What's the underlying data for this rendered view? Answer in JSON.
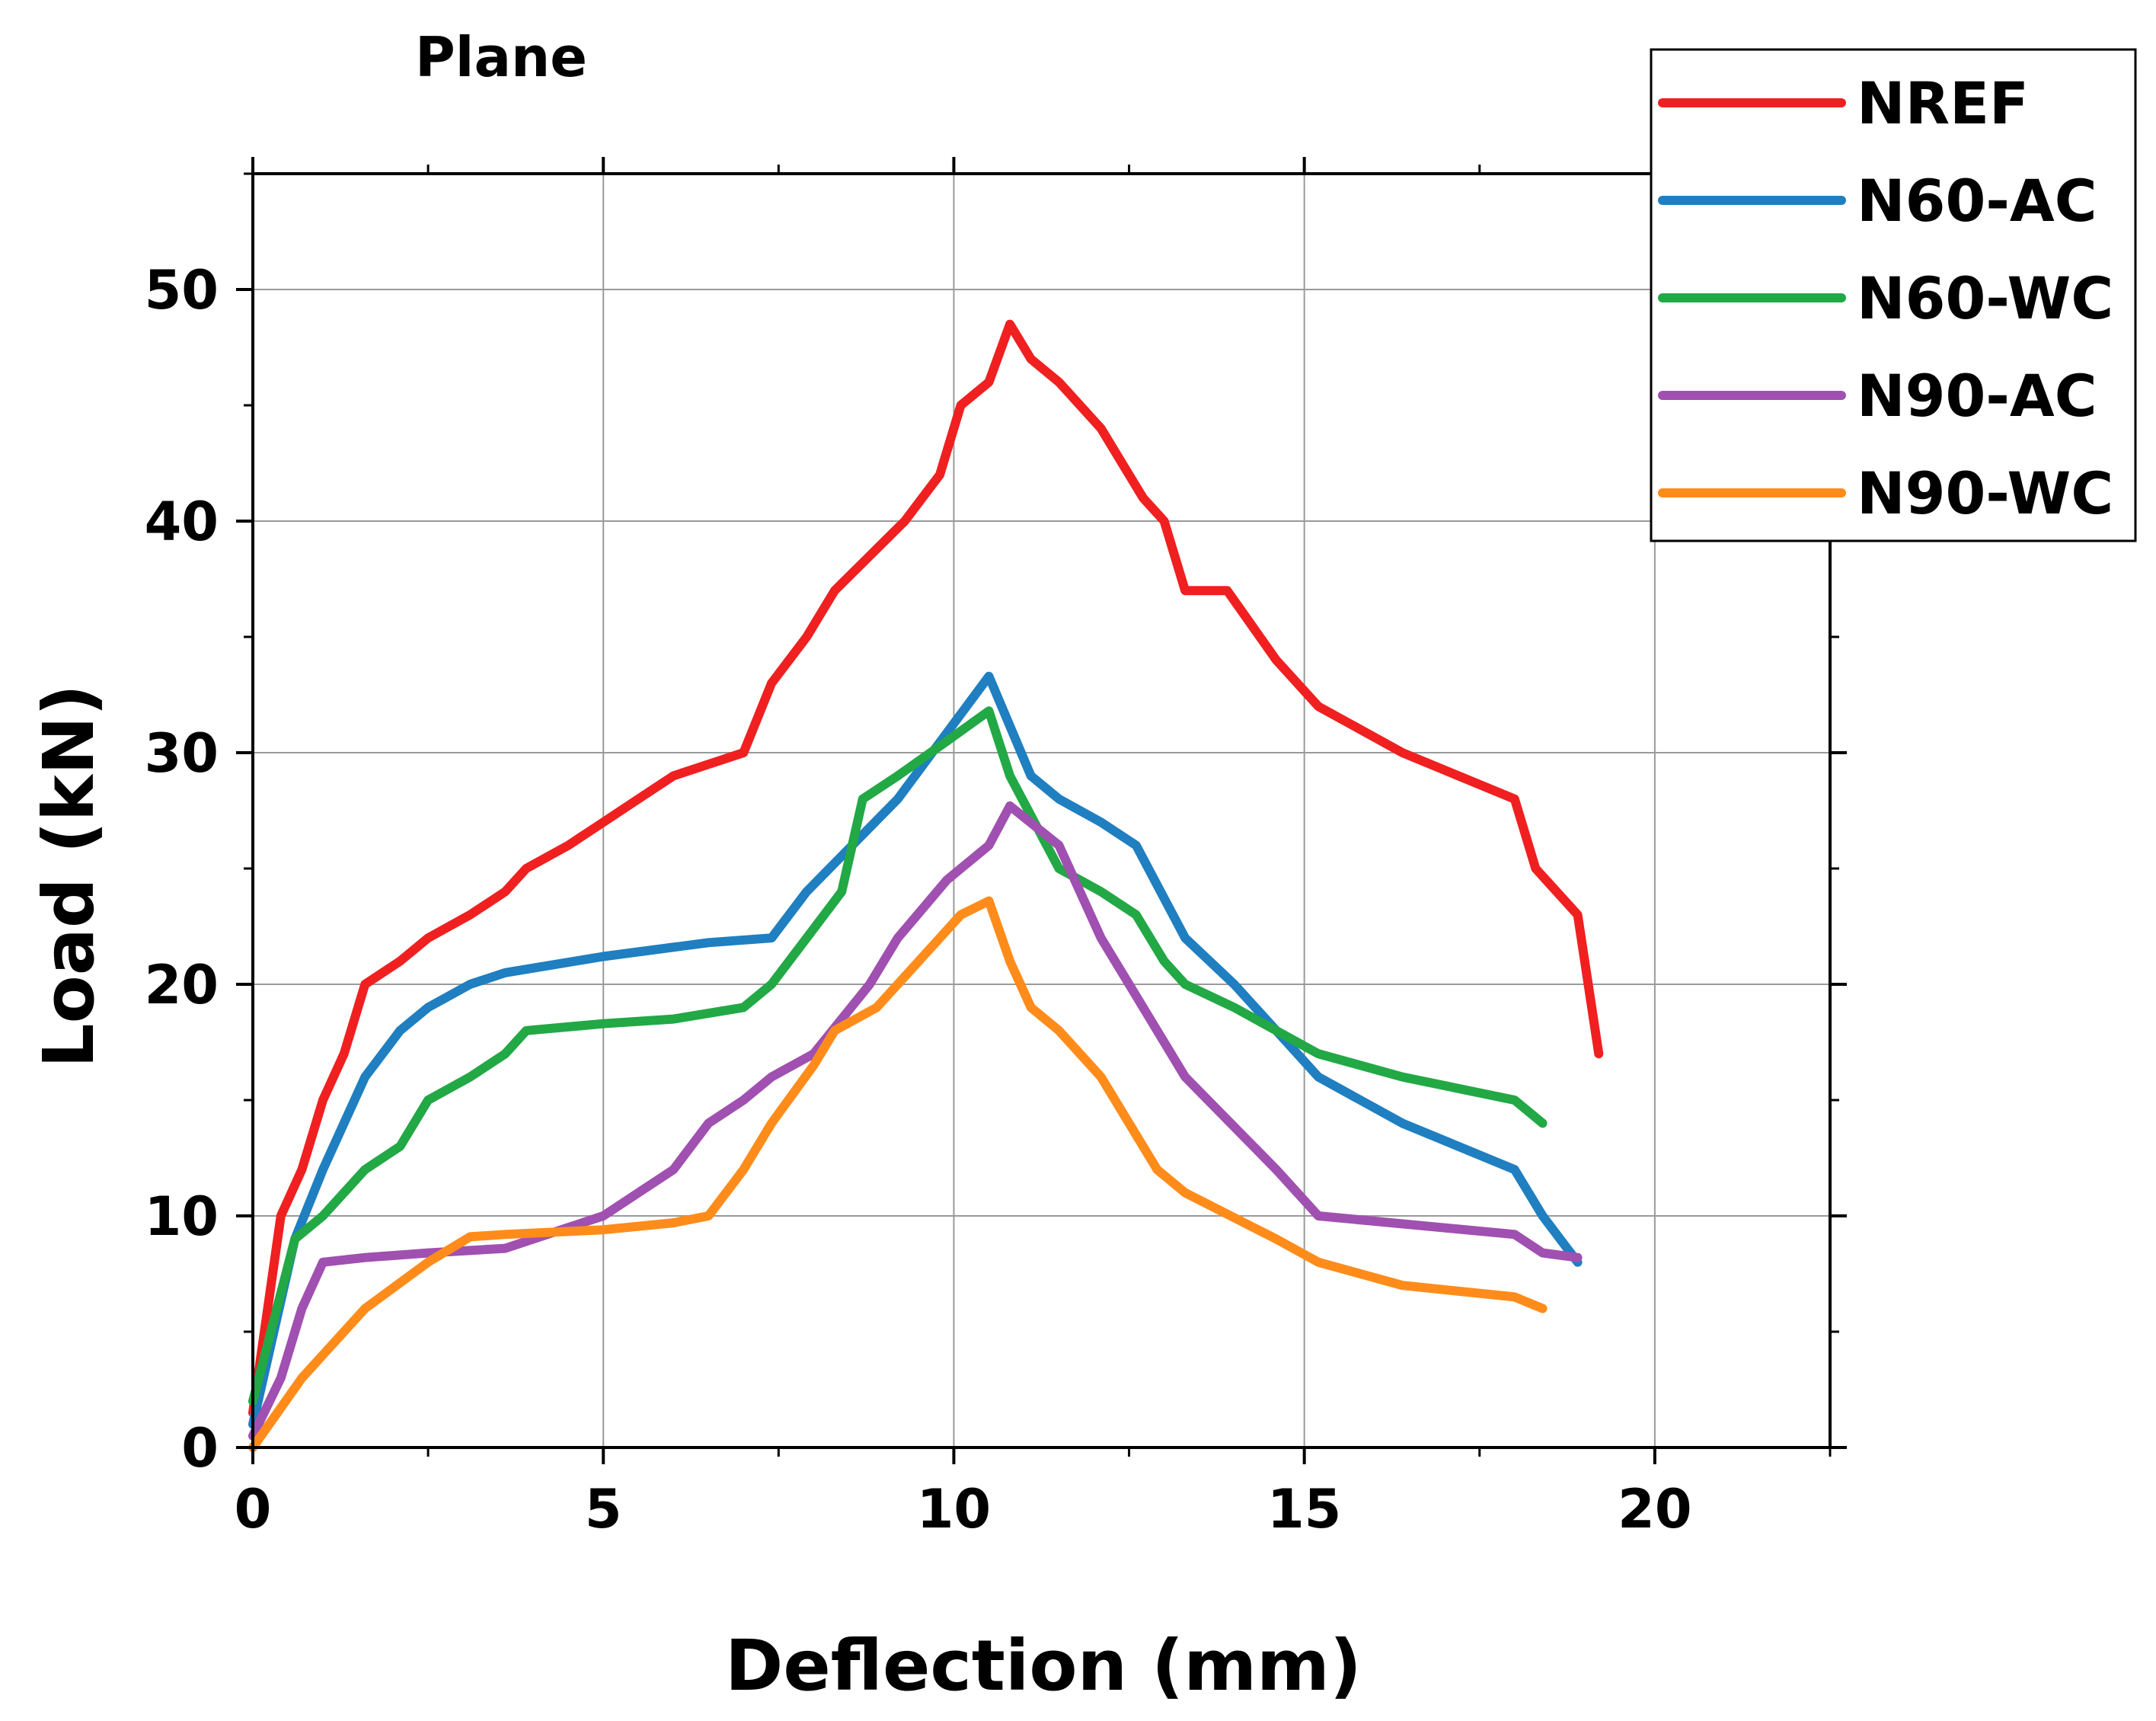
{
  "chart_data": {
    "type": "line",
    "title": "Plane",
    "xlabel": "Deflection (mm)",
    "ylabel": "Load (kN)",
    "xlim": [
      0,
      22.5
    ],
    "ylim": [
      0,
      55
    ],
    "xticks": [
      0,
      5,
      10,
      15,
      20
    ],
    "yticks": [
      0,
      10,
      20,
      30,
      40,
      50
    ],
    "grid": true,
    "legend_position": "top-right",
    "series": [
      {
        "name": "NREF",
        "color": "#f02020",
        "x": [
          0,
          0.4,
          0.7,
          1.0,
          1.3,
          1.6,
          2.1,
          2.5,
          3.1,
          3.6,
          3.9,
          4.5,
          5.0,
          5.5,
          6.0,
          6.5,
          7.0,
          7.4,
          7.9,
          8.3,
          8.8,
          9.3,
          9.8,
          10.1,
          10.5,
          10.8,
          11.1,
          11.5,
          12.1,
          12.7,
          13.0,
          13.3,
          13.9,
          14.6,
          15.2,
          16.4,
          18.0,
          18.3,
          18.9,
          19.2
        ],
        "y": [
          1.5,
          10,
          12,
          15,
          17,
          20,
          21,
          22,
          23,
          24,
          25,
          26,
          27,
          28,
          29,
          29.5,
          30,
          33,
          35,
          37,
          38.5,
          40,
          42,
          45,
          46,
          48.5,
          47,
          46,
          44,
          41,
          40,
          37,
          37,
          34,
          32,
          30,
          28,
          25,
          23,
          17
        ]
      },
      {
        "name": "N60-AC",
        "color": "#1f7fc0",
        "x": [
          0,
          0.6,
          1.0,
          1.6,
          2.1,
          2.5,
          3.1,
          3.6,
          5.0,
          6.5,
          7.4,
          7.9,
          9.2,
          10.5,
          11.1,
          11.5,
          12.1,
          12.6,
          13.3,
          14.0,
          15.2,
          16.4,
          18.0,
          18.4,
          18.9
        ],
        "y": [
          1,
          9,
          12,
          16,
          18,
          19,
          20,
          20.5,
          21.2,
          21.8,
          22,
          24,
          28,
          33.3,
          29,
          28,
          27,
          26,
          22,
          20,
          16,
          14,
          12,
          10,
          8
        ]
      },
      {
        "name": "N60-WC",
        "color": "#22a845",
        "x": [
          0,
          0.6,
          1.0,
          1.6,
          2.1,
          2.5,
          3.1,
          3.6,
          3.9,
          5.0,
          6.0,
          7.0,
          7.4,
          7.9,
          8.4,
          8.7,
          9.2,
          9.9,
          10.5,
          10.8,
          11.5,
          12.1,
          12.6,
          13.0,
          13.3,
          14.0,
          15.2,
          16.4,
          18.0,
          18.4
        ],
        "y": [
          2,
          9,
          10,
          12,
          13,
          15,
          16,
          17,
          18,
          18.3,
          18.5,
          19,
          20,
          22,
          24,
          28,
          29,
          30.5,
          31.8,
          29,
          25,
          24,
          23,
          21,
          20,
          19,
          17,
          16,
          15,
          14
        ]
      },
      {
        "name": "N90-AC",
        "color": "#a050b0",
        "x": [
          0,
          0.4,
          0.7,
          1.0,
          1.6,
          2.5,
          3.6,
          4.5,
          5.0,
          5.5,
          6.0,
          6.5,
          7.0,
          7.4,
          8.0,
          8.8,
          9.2,
          9.9,
          10.5,
          10.8,
          11.5,
          12.1,
          12.6,
          13.3,
          14.6,
          15.2,
          18.0,
          18.4,
          18.9
        ],
        "y": [
          0.5,
          3,
          6,
          8,
          8.2,
          8.4,
          8.6,
          9.5,
          10,
          11,
          12,
          14,
          15,
          16,
          17,
          20,
          22,
          24.5,
          26,
          27.7,
          26,
          22,
          19.5,
          16,
          12,
          10,
          9.2,
          8.4,
          8.2
        ]
      },
      {
        "name": "N90-WC",
        "color": "#ff8c1a",
        "x": [
          0,
          0.7,
          1.6,
          2.5,
          3.1,
          3.6,
          5.0,
          6.0,
          6.5,
          7.0,
          7.4,
          8.0,
          8.3,
          8.9,
          9.5,
          10.1,
          10.5,
          10.8,
          11.1,
          11.5,
          12.1,
          12.9,
          13.3,
          14.6,
          15.2,
          16.4,
          18.0,
          18.4
        ],
        "y": [
          0,
          3,
          6,
          8,
          9.1,
          9.2,
          9.4,
          9.7,
          10,
          12,
          14,
          16.5,
          18,
          19,
          21,
          23,
          23.6,
          21,
          19,
          18,
          16,
          12,
          11,
          9,
          8,
          7,
          6.5,
          6
        ]
      }
    ]
  }
}
